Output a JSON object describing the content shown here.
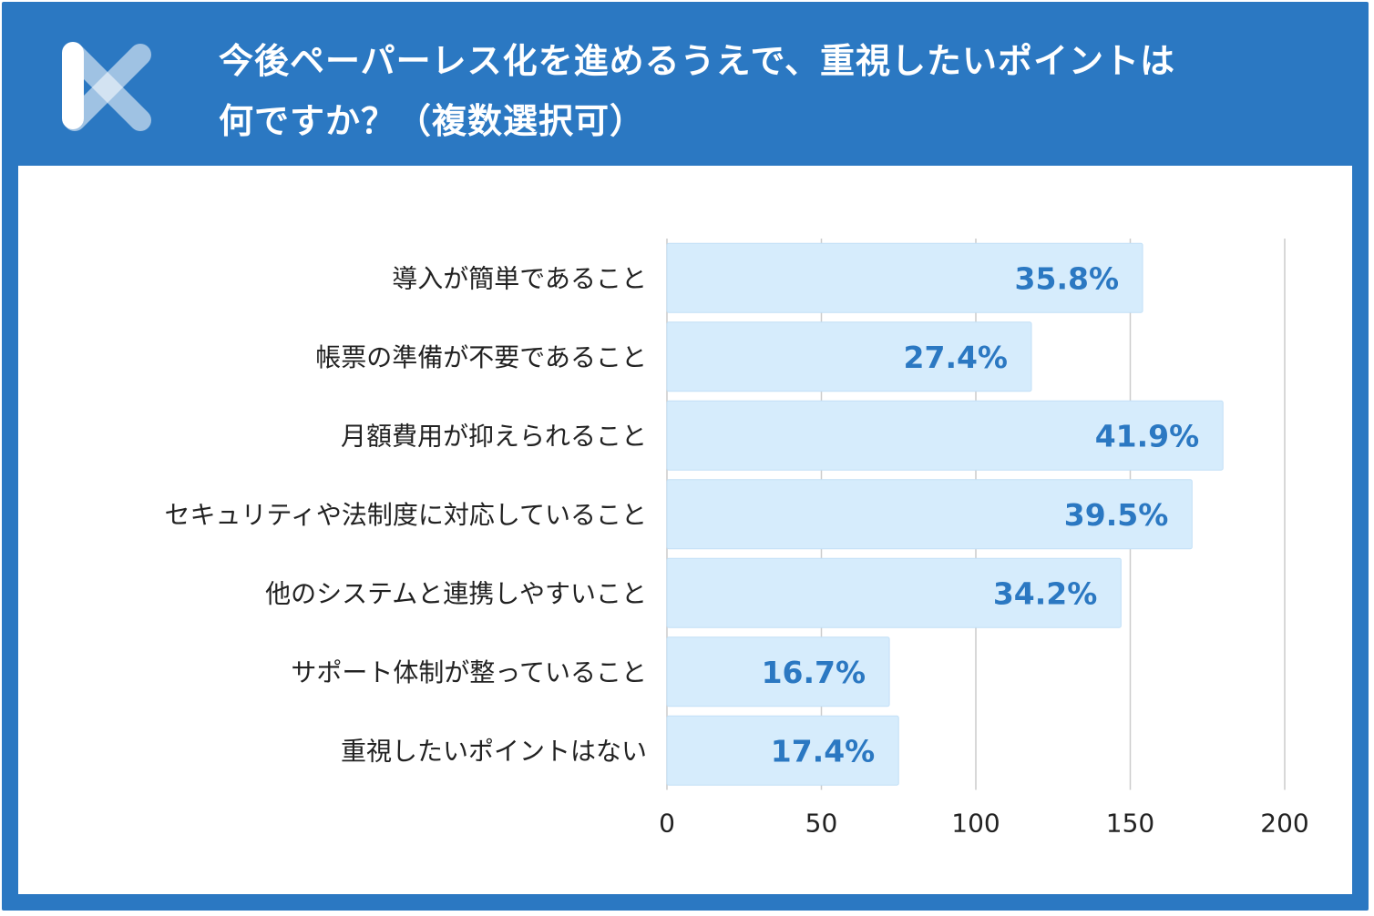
{
  "header": {
    "title_line1": "今後ペーパーレス化を進めるうえで、重視したいポイントは",
    "title_line2": "何ですか？（複数選択可）"
  },
  "colors": {
    "frame": "#2b78c2",
    "bar_fill": "#d6ecfc",
    "bar_stroke": "#c2dff6",
    "value_text": "#2b78c2",
    "grid": "#cccccc"
  },
  "logo": {
    "icon": "x-logo-icon"
  },
  "chart_data": {
    "type": "bar",
    "orientation": "horizontal",
    "categories": [
      "導入が簡単であること",
      "帳票の準備が不要であること",
      "月額費用が抑えられること",
      "セキュリティや法制度に対応していること",
      "他のシステムと連携しやすいこと",
      "サポート体制が整っていること",
      "重視したいポイントはない"
    ],
    "values": [
      154,
      118,
      180,
      170,
      147,
      72,
      75
    ],
    "value_labels": [
      "35.8%",
      "27.4%",
      "41.9%",
      "39.5%",
      "34.2%",
      "16.7%",
      "17.4%"
    ],
    "xlim": [
      0,
      200
    ],
    "xticks": [
      0,
      50,
      100,
      150,
      200
    ],
    "xtick_labels": [
      "0",
      "50",
      "100",
      "150",
      "200"
    ],
    "grid": true
  }
}
